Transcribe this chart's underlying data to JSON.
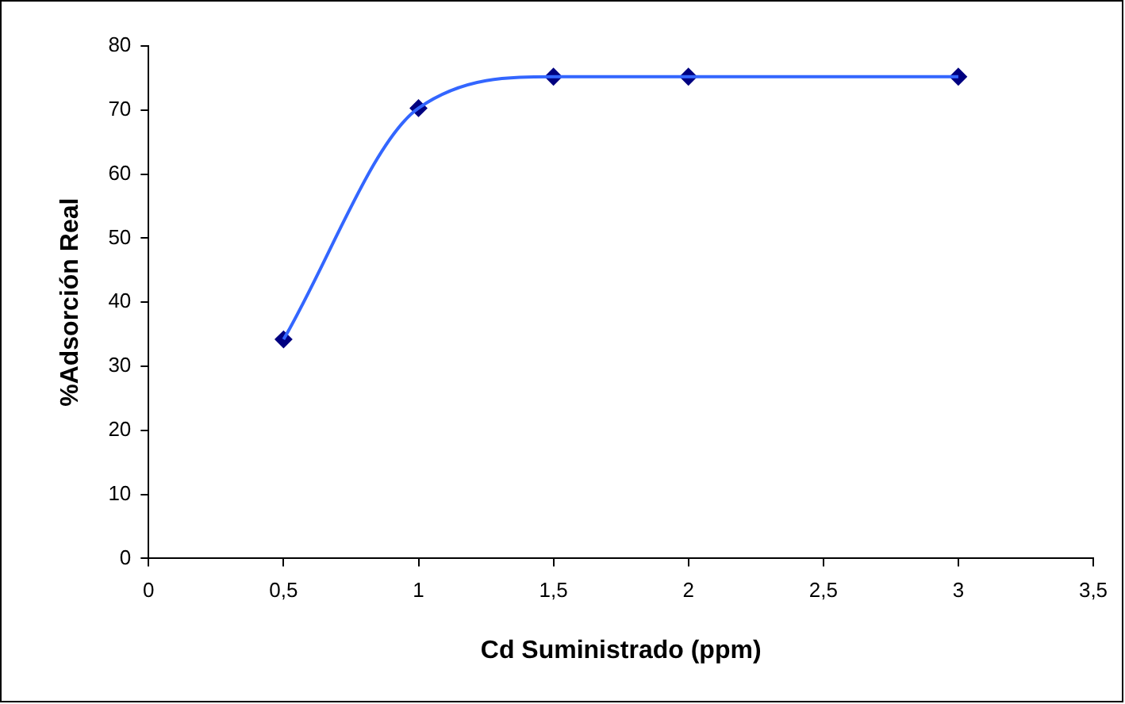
{
  "chart_data": {
    "type": "line",
    "xlabel": "Cd Suministrado (ppm)",
    "ylabel": "%Adsorción Real",
    "x": [
      0.5,
      1,
      1.5,
      2,
      3
    ],
    "series": [
      {
        "type": "line",
        "color": "#3366ff",
        "marker": "none",
        "values": [
          34.2,
          70.3,
          75.2,
          75.2,
          75.2
        ]
      },
      {
        "type": "scatter",
        "color": "#000080",
        "marker": "diamond",
        "values": [
          34.2,
          70.3,
          75.2,
          75.2,
          75.2
        ]
      }
    ],
    "xlim": [
      0,
      3.5
    ],
    "xticks": [
      0,
      {
        "value": 0.5,
        "label": "0,5"
      },
      1,
      {
        "value": 1.5,
        "label": "1,5"
      },
      2,
      {
        "value": 2.5,
        "label": "2,5"
      },
      3,
      {
        "value": 3.5,
        "label": "3,5"
      }
    ],
    "ylim": [
      0,
      80
    ],
    "yticks": [
      0,
      10,
      20,
      30,
      40,
      50,
      60,
      70,
      80
    ],
    "grid": false,
    "legend": false
  }
}
